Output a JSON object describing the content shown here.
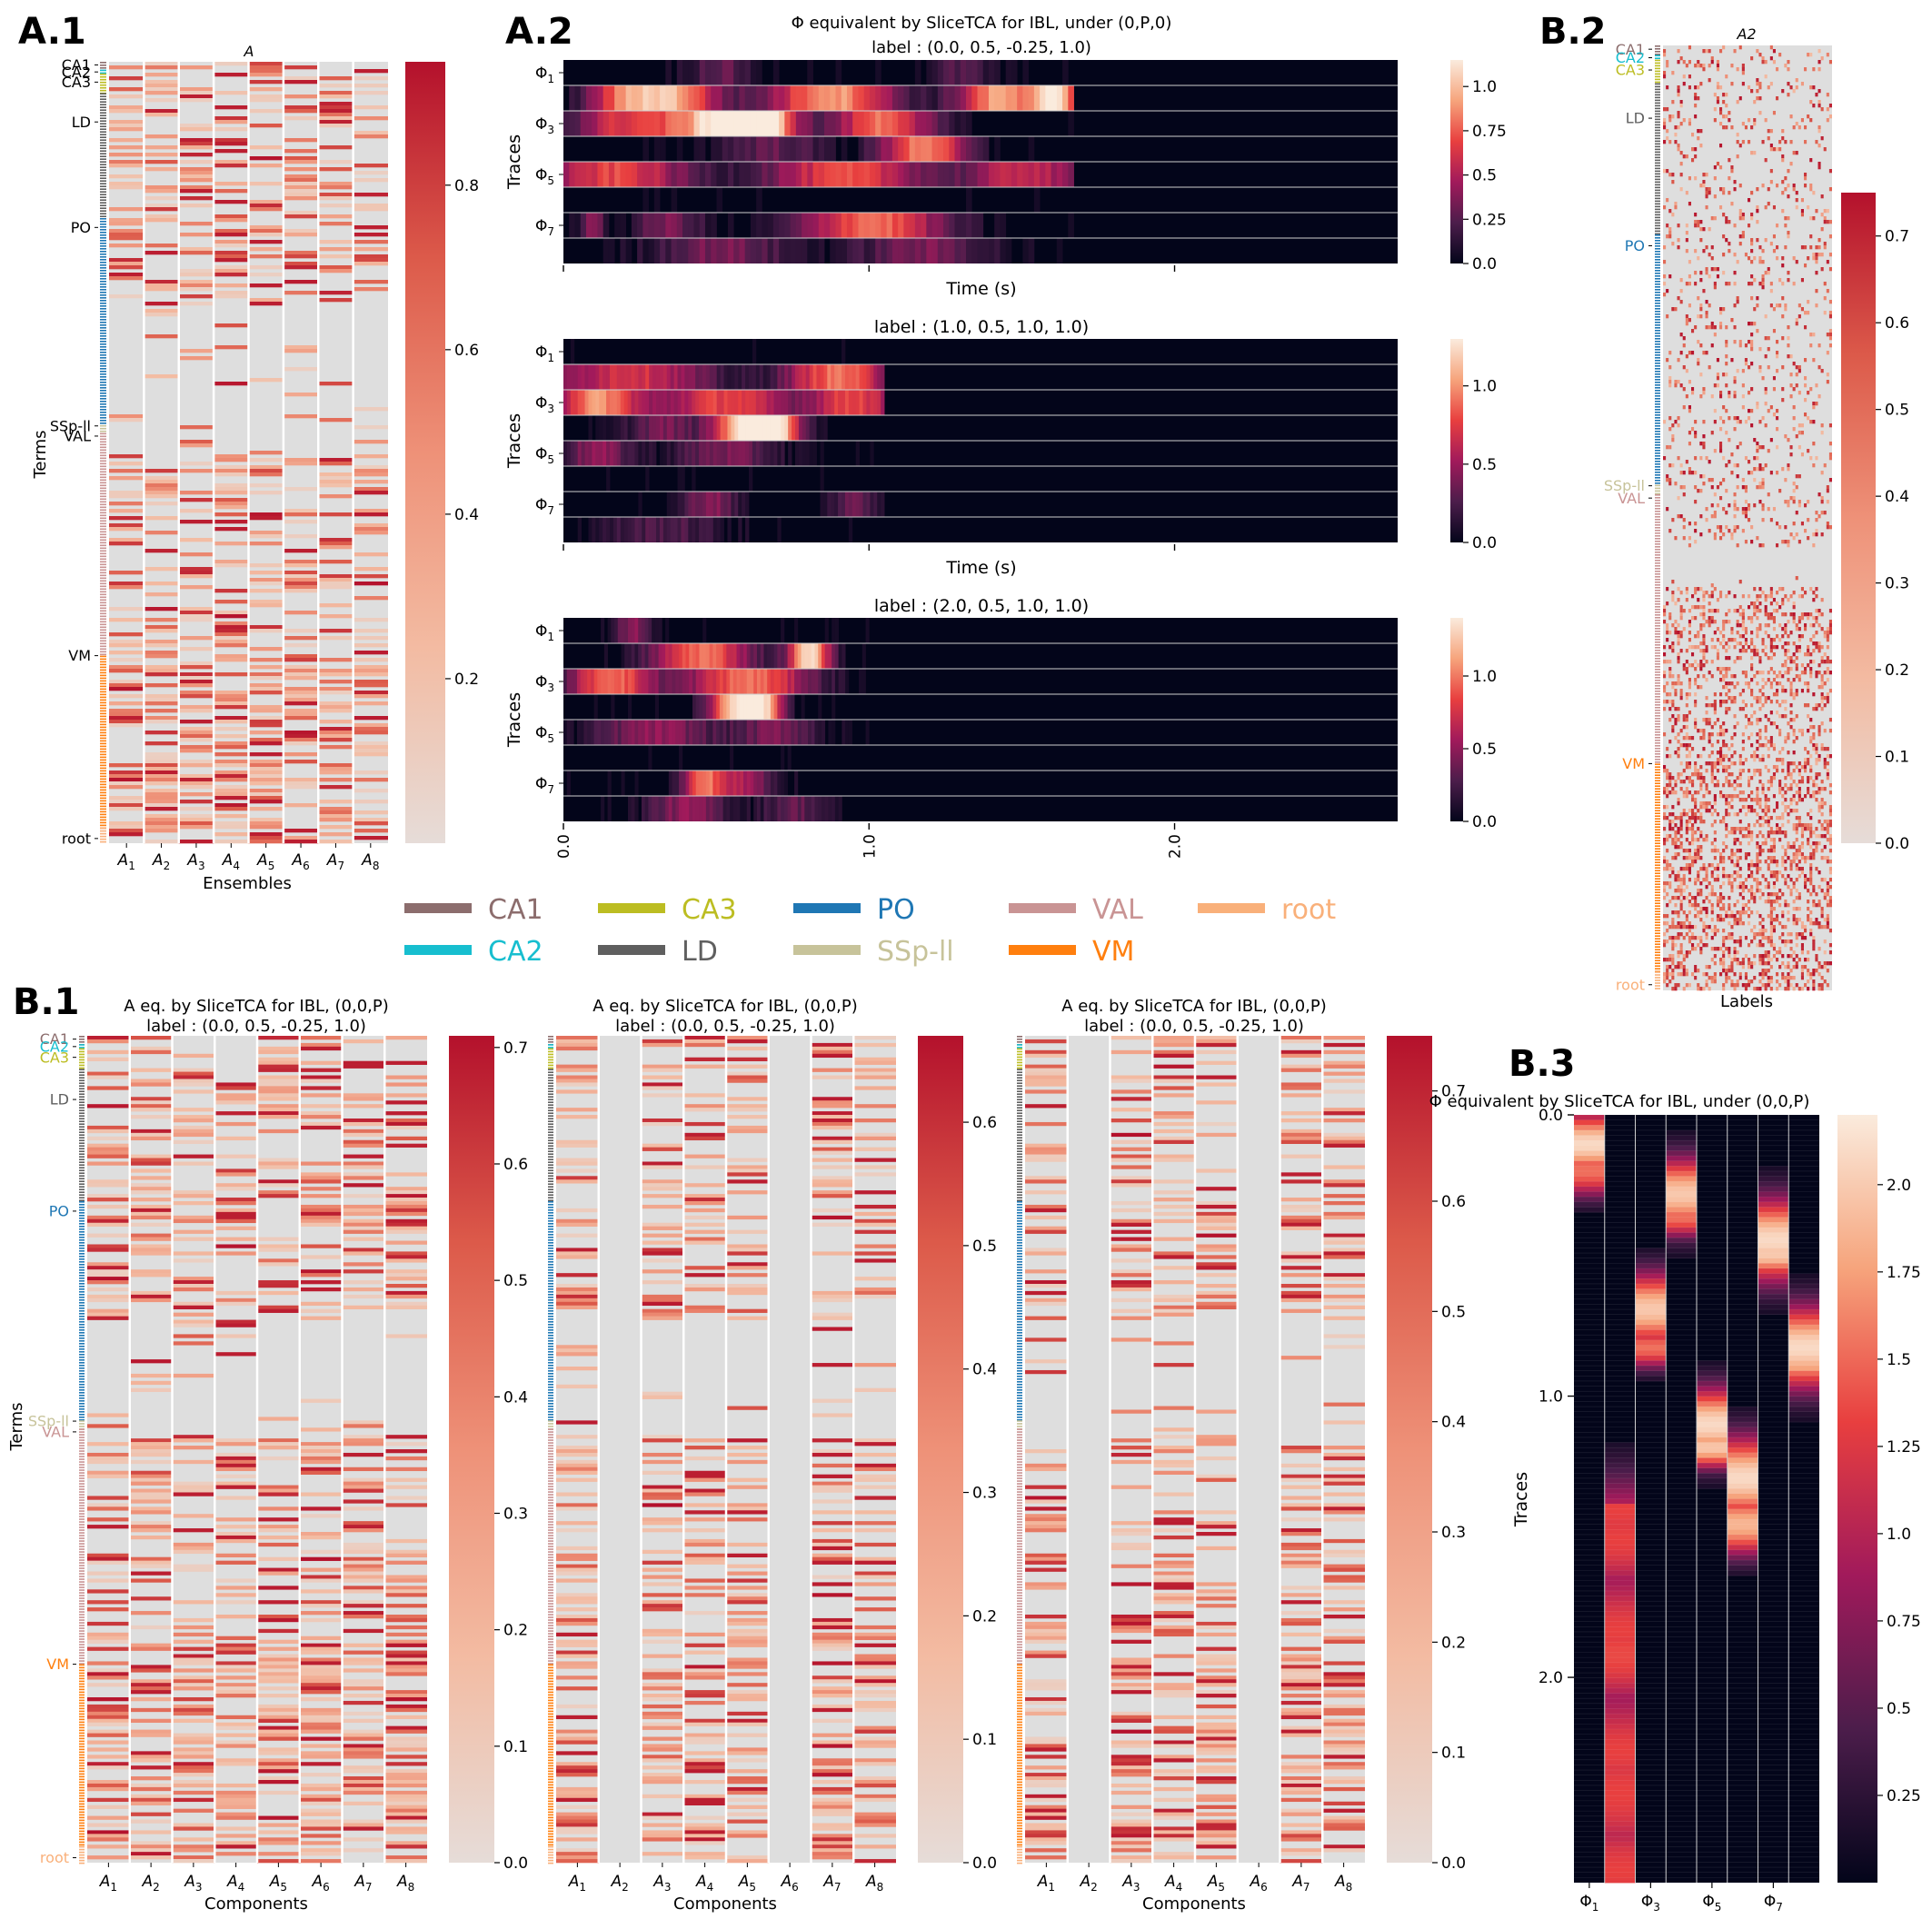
{
  "palette": {
    "CA1": "#8c6d6d",
    "CA2": "#17becf",
    "CA3": "#bcbd22",
    "LD": "#5f5f5f",
    "PO": "#1f77b4",
    "SSp-ll": "#c7c39a",
    "VAL": "#c99494",
    "VM": "#ff7f0e",
    "root": "#f9b07a"
  },
  "panel_labels": {
    "A1": "A.1",
    "A2": "A.2",
    "B1": "B.1",
    "B2": "B.2",
    "B3": "B.3"
  },
  "legend": {
    "entries": [
      "CA1",
      "CA2",
      "CA3",
      "LD",
      "PO",
      "SSp-ll",
      "VAL",
      "VM",
      "root"
    ]
  },
  "chart_data": [
    {
      "id": "A1",
      "type": "heatmap",
      "title": "A",
      "xlabel": "Ensembles",
      "ylabel": "Terms",
      "columns": [
        "A1",
        "A2",
        "A3",
        "A4",
        "A5",
        "A6",
        "A7",
        "A8"
      ],
      "region_ticks": [
        "CA1",
        "CA2",
        "CA3",
        "LD",
        "PO",
        "SSp-ll",
        "VAL",
        "VM",
        "root"
      ],
      "region_ranges": {
        "CA1": [
          0,
          0.01
        ],
        "CA2": [
          0.01,
          0.015
        ],
        "CA3": [
          0.015,
          0.04
        ],
        "LD": [
          0.04,
          0.2
        ],
        "PO": [
          0.2,
          0.465
        ],
        "SSp-ll": [
          0.465,
          0.475
        ],
        "VAL": [
          0.475,
          0.76
        ],
        "VM": [
          0.76,
          0.98
        ],
        "root": [
          0.98,
          1.0
        ]
      },
      "colorbar": {
        "range": [
          0,
          0.95
        ],
        "ticks": [
          0.2,
          0.4,
          0.6,
          0.8
        ],
        "colormap": "reds"
      }
    },
    {
      "id": "A2a",
      "type": "heatmap",
      "title": "Φ equivalent by SliceTCA for IBL, under (0,P,0)",
      "subtitle": "label : (0.0, 0.5, -0.25, 1.0)",
      "xlabel": "Time (s)",
      "ylabel": "Traces",
      "rows": [
        "Φ1",
        "Φ3",
        "Φ5",
        "Φ7"
      ],
      "active_end_s": 1.67,
      "xlim": [
        0,
        2.73
      ],
      "colorbar": {
        "range": [
          0,
          1.15
        ],
        "ticks": [
          0.0,
          0.25,
          0.5,
          0.75,
          1.0
        ],
        "colormap": "rocket"
      }
    },
    {
      "id": "A2b",
      "type": "heatmap",
      "title": "label : (1.0, 0.5, 1.0, 1.0)",
      "xlabel": "Time (s)",
      "ylabel": "Traces",
      "rows": [
        "Φ1",
        "Φ3",
        "Φ5",
        "Φ7"
      ],
      "active_end_s": 1.05,
      "xlim": [
        0,
        2.73
      ],
      "colorbar": {
        "range": [
          0,
          1.3
        ],
        "ticks": [
          0.0,
          0.5,
          1.0
        ],
        "colormap": "rocket"
      }
    },
    {
      "id": "A2c",
      "type": "heatmap",
      "title": "label : (2.0, 0.5, 1.0, 1.0)",
      "ylabel": "Traces",
      "rows": [
        "Φ1",
        "Φ3",
        "Φ5",
        "Φ7"
      ],
      "x_ticks": [
        "0.0",
        "1.0",
        "2.0"
      ],
      "active_end_s": 1.0,
      "xlim": [
        0,
        2.73
      ],
      "colorbar": {
        "range": [
          0,
          1.4
        ],
        "ticks": [
          0.0,
          0.5,
          1.0
        ],
        "colormap": "rocket"
      }
    },
    {
      "id": "B1a",
      "type": "heatmap",
      "title": "A eq. by SliceTCA for IBL, (0,0,P)",
      "subtitle": "label : (0.0, 0.5, -0.25, 1.0)",
      "xlabel": "Components",
      "ylabel": "Terms",
      "columns": [
        "A1",
        "A2",
        "A3",
        "A4",
        "A5",
        "A6",
        "A7",
        "A8"
      ],
      "region_ticks": [
        "CA1",
        "CA2",
        "CA3",
        "LD",
        "PO",
        "SSp-ll",
        "VAL",
        "VM",
        "root"
      ],
      "colorbar": {
        "range": [
          0,
          0.71
        ],
        "ticks": [
          0.0,
          0.1,
          0.2,
          0.3,
          0.4,
          0.5,
          0.6,
          0.7
        ],
        "colormap": "reds"
      }
    },
    {
      "id": "B1b",
      "type": "heatmap",
      "title": "A eq. by SliceTCA for IBL, (0,0,P)",
      "subtitle": "label : (0.0, 0.5, -0.25, 1.0)",
      "xlabel": "Components",
      "columns": [
        "A1",
        "A2",
        "A3",
        "A4",
        "A5",
        "A6",
        "A7",
        "A8"
      ],
      "empty_columns": [
        1,
        5
      ],
      "colorbar": {
        "range": [
          0,
          0.67
        ],
        "ticks": [
          0.0,
          0.1,
          0.2,
          0.3,
          0.4,
          0.5,
          0.6
        ],
        "colormap": "reds"
      }
    },
    {
      "id": "B1c",
      "type": "heatmap",
      "title": "A eq. by SliceTCA for IBL, (0,0,P)",
      "subtitle": "label : (0.0, 0.5, -0.25, 1.0)",
      "xlabel": "Components",
      "columns": [
        "A1",
        "A2",
        "A3",
        "A4",
        "A5",
        "A6",
        "A7",
        "A8"
      ],
      "empty_columns": [
        1,
        5
      ],
      "colorbar": {
        "range": [
          0,
          0.75
        ],
        "ticks": [
          0.0,
          0.1,
          0.2,
          0.3,
          0.4,
          0.5,
          0.6,
          0.7
        ],
        "colormap": "reds"
      }
    },
    {
      "id": "B2",
      "type": "heatmap",
      "title": "A2",
      "xlabel": "Labels",
      "region_ticks": [
        "CA1",
        "CA2",
        "CA3",
        "LD",
        "PO",
        "SSp-ll",
        "VAL",
        "VM",
        "root"
      ],
      "colorbar": {
        "range": [
          0,
          0.75
        ],
        "ticks": [
          0.0,
          0.1,
          0.2,
          0.3,
          0.4,
          0.5,
          0.6,
          0.7
        ],
        "colormap": "reds"
      }
    },
    {
      "id": "B3",
      "type": "heatmap",
      "title": "Φ equivalent by SliceTCA for IBL, under (0,0,P)",
      "ylabel": "Traces",
      "columns": [
        "Φ1",
        "Φ3",
        "Φ5",
        "Φ7"
      ],
      "y_ticks": [
        "0.0",
        "1.0",
        "2.0"
      ],
      "ylim": [
        0,
        2.73
      ],
      "colorbar": {
        "range": [
          0,
          2.2
        ],
        "ticks": [
          0.25,
          0.5,
          0.75,
          1.0,
          1.25,
          1.5,
          1.75,
          2.0
        ],
        "colormap": "rocket"
      }
    }
  ]
}
